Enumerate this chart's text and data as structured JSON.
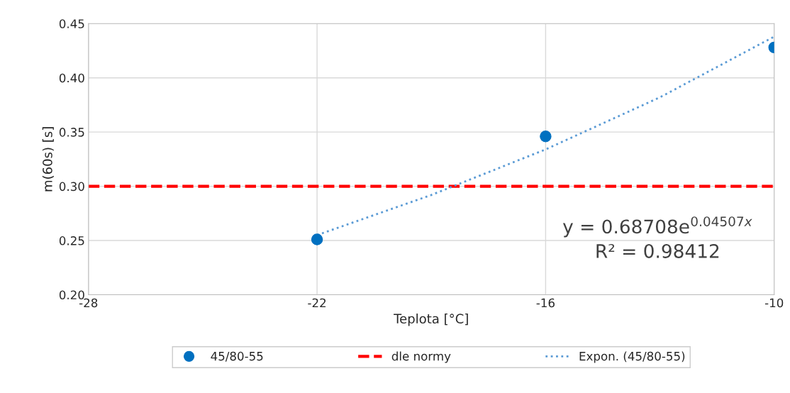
{
  "chart_data": {
    "type": "scatter",
    "xlabel": "Teplota [°C]",
    "ylabel": "m(60s) [s]",
    "x": [
      -22,
      -16,
      -10
    ],
    "series": [
      {
        "name": "45/80-55",
        "color": "#0070c0",
        "marker": "circle",
        "values": [
          0.251,
          0.346,
          0.428
        ]
      },
      {
        "name": "Expon. (45/80-55)",
        "type": "line",
        "color": "#5b9bd5",
        "line_style": "dotted",
        "marker": "none",
        "x": [
          -22,
          -19,
          -16,
          -13,
          -10
        ],
        "values": [
          0.255,
          0.292,
          0.334,
          0.382,
          0.438
        ]
      }
    ],
    "ref_lines": [
      {
        "axis": "y",
        "value": 0.3,
        "label": "dle normy",
        "color": "#ff0000",
        "line_style": "dashed"
      }
    ],
    "annotations": [
      "y = 0.68708e$^{0.04507x}$",
      "R² = 0.98412"
    ],
    "xlim": [
      -28,
      -10
    ],
    "xticks": [
      {
        "value": -28,
        "label": "-28"
      },
      {
        "value": -22,
        "label": "-22"
      },
      {
        "value": -16,
        "label": "-16"
      },
      {
        "value": -10,
        "label": "-10"
      }
    ],
    "ylim": [
      0.2,
      0.45
    ],
    "yticks": [
      {
        "value": 0.2,
        "label": "0.20"
      },
      {
        "value": 0.25,
        "label": "0.25"
      },
      {
        "value": 0.3,
        "label": "0.30"
      },
      {
        "value": 0.35,
        "label": "0.35"
      },
      {
        "value": 0.4,
        "label": "0.40"
      },
      {
        "value": 0.45,
        "label": "0.45"
      }
    ],
    "grid": true,
    "legend": "bottom"
  }
}
